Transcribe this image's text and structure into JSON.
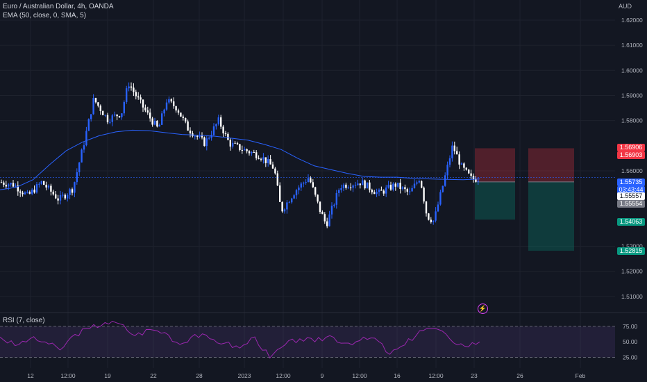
{
  "header": {
    "symbol_line": "Euro / Australian Dollar, 4h, OANDA",
    "indicator_line": "EMA (50, close, 0, SMA, 5)"
  },
  "rsi": {
    "label": "RSI (7, close)",
    "levels": [
      "75.00",
      "50.00",
      "25.00"
    ]
  },
  "axis": {
    "unit": "AUD",
    "price_ticks": [
      "1.62000",
      "1.61000",
      "1.60000",
      "1.59000",
      "1.58000",
      "1.56000",
      "1.53000",
      "1.52000",
      "1.51000"
    ],
    "time_ticks": [
      "12",
      "12:00",
      "19",
      "22",
      "28",
      "2023",
      "12:00",
      "9",
      "12:00",
      "16",
      "12:00",
      "23",
      "26",
      "Feb"
    ]
  },
  "price_tags": {
    "stop_a": "1.56906",
    "stop_b": "1.56903",
    "last": "1.55735",
    "countdown": "03:43:44",
    "entry_a": "1.55557",
    "entry_b": "1.55554",
    "target_a": "1.54063",
    "target_b": "1.52815"
  },
  "colors": {
    "background": "#131722",
    "bull": "#2962ff",
    "bear": "#ffffff",
    "ema": "#2962ff",
    "rsi": "#9c27b0",
    "stop": "#f23645",
    "target": "#089981"
  },
  "icons": {
    "alert": "lightning-icon"
  },
  "chart_data": [
    {
      "type": "candlestick",
      "symbol": "EURAUD",
      "timeframe": "4h",
      "ylim": [
        1.505,
        1.628
      ],
      "ema_50": [
        1.5525,
        1.5535,
        1.5565,
        1.5625,
        1.568,
        1.5715,
        1.574,
        1.5755,
        1.5762,
        1.576,
        1.5752,
        1.5745,
        1.5742,
        1.5738,
        1.573,
        1.5722,
        1.5705,
        1.5685,
        1.565,
        1.562,
        1.5605,
        1.559,
        1.5578,
        1.5575,
        1.5575,
        1.557,
        1.5568,
        1.5566,
        1.5565,
        1.5568
      ],
      "rsi_7": [
        58,
        44,
        55,
        50,
        37,
        62,
        72,
        81,
        79,
        60,
        70,
        65,
        46,
        62,
        55,
        48,
        40,
        58,
        24,
        45,
        55,
        50,
        60,
        48,
        52,
        56,
        30,
        45,
        68,
        72,
        55,
        43,
        50
      ],
      "trade_boxes": [
        {
          "entry": 1.5556,
          "stop": 1.569,
          "target": 1.5406
        },
        {
          "entry": 1.5556,
          "stop": 1.569,
          "target": 1.5282
        }
      ],
      "last_price": 1.55735
    }
  ]
}
